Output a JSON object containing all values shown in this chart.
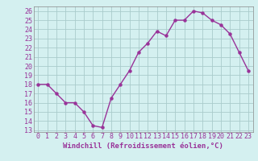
{
  "x": [
    0,
    1,
    2,
    3,
    4,
    5,
    6,
    7,
    8,
    9,
    10,
    11,
    12,
    13,
    14,
    15,
    16,
    17,
    18,
    19,
    20,
    21,
    22,
    23
  ],
  "y": [
    18,
    18,
    17,
    16,
    16,
    15,
    13.5,
    13.3,
    16.5,
    18,
    19.5,
    21.5,
    22.5,
    23.8,
    23.3,
    25,
    25,
    26,
    25.8,
    25,
    24.5,
    23.5,
    21.5,
    19.5
  ],
  "line_color": "#993399",
  "marker": "o",
  "markersize": 2.2,
  "linewidth": 1.0,
  "xlabel": "Windchill (Refroidissement éolien,°C)",
  "xlabel_fontsize": 6.5,
  "ylabel_ticks": [
    13,
    14,
    15,
    16,
    17,
    18,
    19,
    20,
    21,
    22,
    23,
    24,
    25,
    26
  ],
  "xlim": [
    -0.5,
    23.5
  ],
  "ylim": [
    12.8,
    26.5
  ],
  "background_color": "#d4f0f0",
  "grid_color": "#bbdddd",
  "tick_fontsize": 6.0,
  "xtick_labels": [
    "0",
    "1",
    "2",
    "3",
    "4",
    "5",
    "6",
    "7",
    "8",
    "9",
    "10",
    "11",
    "12",
    "13",
    "14",
    "15",
    "16",
    "17",
    "18",
    "19",
    "20",
    "21",
    "22",
    "23"
  ]
}
